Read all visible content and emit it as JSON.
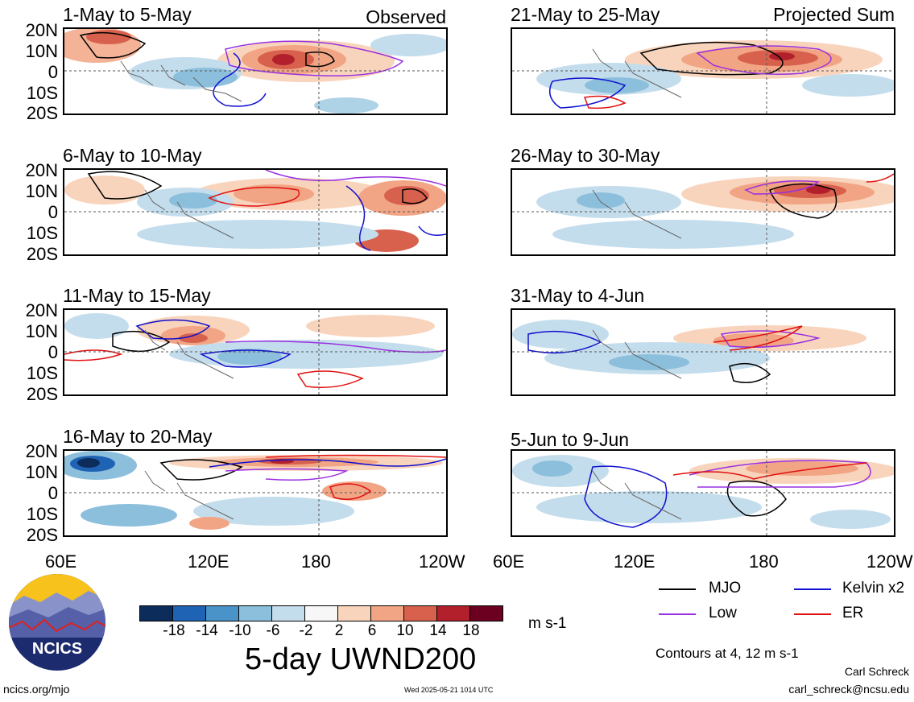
{
  "figure": {
    "title": "5-day UWND200",
    "units": "m s-1",
    "contour_note": "Contours at 4, 12 m s-1",
    "author": "Carl Schreck",
    "email": "carl_schreck@ncsu.edu",
    "site": "ncics.org/mjo",
    "timestamp": "Wed 2025-05-21 1014 UTC",
    "logo_text": "NCICS"
  },
  "columns": {
    "left_tag": "Observed",
    "right_tag": "Projected Sum"
  },
  "panels": [
    {
      "title": "1-May to 5-May"
    },
    {
      "title": "21-May to 25-May"
    },
    {
      "title": "6-May to 10-May"
    },
    {
      "title": "26-May to 30-May"
    },
    {
      "title": "11-May to 15-May"
    },
    {
      "title": "31-May to 4-Jun"
    },
    {
      "title": "16-May to 20-May"
    },
    {
      "title": "5-Jun to 9-Jun"
    }
  ],
  "lat_labels": [
    "20N",
    "10N",
    "0",
    "10S",
    "20S"
  ],
  "lon_labels": [
    "60E",
    "120E",
    "180",
    "120W"
  ],
  "colorbar": {
    "labels": [
      "-18",
      "-14",
      "-10",
      "-6",
      "-2",
      "2",
      "6",
      "10",
      "14",
      "18"
    ],
    "colors": [
      "#0c2c5c",
      "#1f63b4",
      "#4a93c8",
      "#8cbfdc",
      "#c4ddec",
      "#f7f7f7",
      "#f9d4bc",
      "#f2a585",
      "#d8614e",
      "#b2202c",
      "#6b0020"
    ]
  },
  "legend": [
    {
      "label": "MJO",
      "color": "#000000"
    },
    {
      "label": "Kelvin x2",
      "color": "#1010d0"
    },
    {
      "label": "Low",
      "color": "#9a30e0"
    },
    {
      "label": "ER",
      "color": "#e01010"
    }
  ]
}
